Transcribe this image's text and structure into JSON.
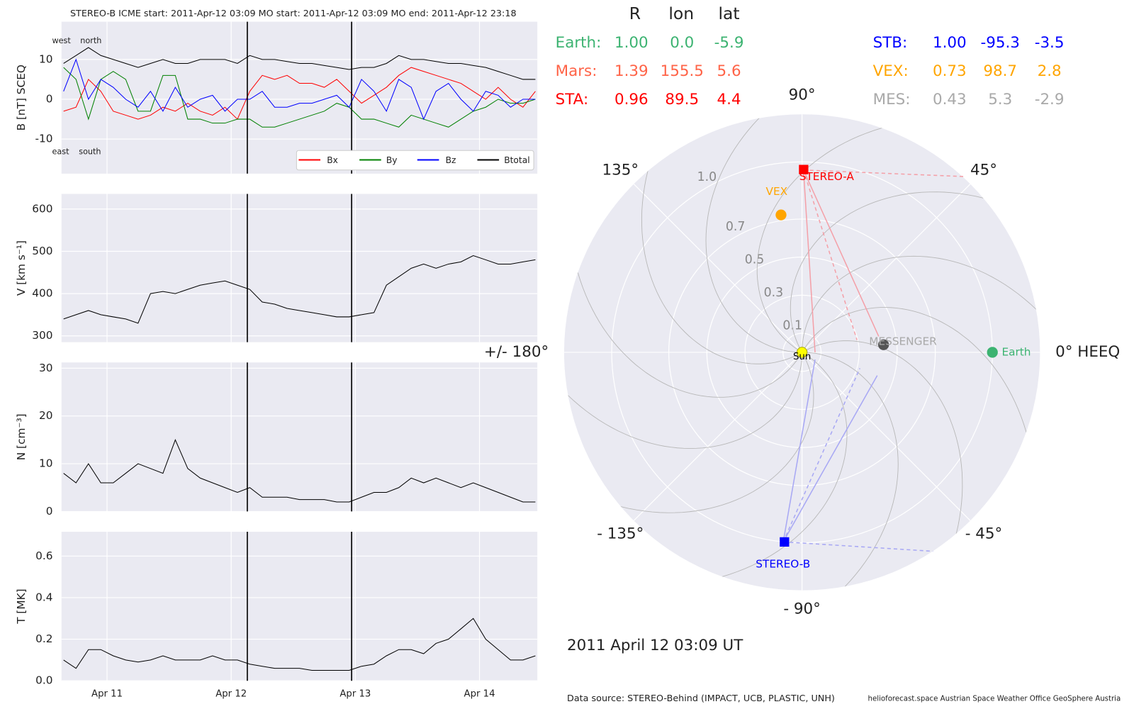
{
  "header": {
    "title": "STEREO-B    ICME start: 2011-Apr-12 03:09   MO start: 2011-Apr-12 03:09   MO end: 2011-Apr-12 23:18"
  },
  "events": [
    12.13,
    12.97
  ],
  "chart_data": [
    {
      "type": "line",
      "ylabel": "B [nT] SCEQ",
      "legend": "lower right",
      "annotations": [
        "west",
        "north",
        "east",
        "south"
      ],
      "x": [
        10.65,
        10.75,
        10.85,
        10.95,
        11.05,
        11.15,
        11.25,
        11.35,
        11.45,
        11.55,
        11.65,
        11.75,
        11.85,
        11.95,
        12.05,
        12.15,
        12.25,
        12.35,
        12.45,
        12.55,
        12.65,
        12.75,
        12.85,
        12.95,
        13.05,
        13.15,
        13.25,
        13.35,
        13.45,
        13.55,
        13.65,
        13.75,
        13.85,
        13.95,
        14.05,
        14.15,
        14.25,
        14.35,
        14.45
      ],
      "xlim": [
        10.633,
        14.466
      ],
      "xticks": [
        11,
        12,
        13,
        14
      ],
      "ylim": [
        -18.7,
        19.5
      ],
      "yticks": [
        -10,
        0,
        10
      ],
      "grid": true,
      "series": [
        {
          "name": "Bx",
          "color": "#ff0000",
          "values": [
            -3,
            -2,
            5,
            2,
            -3,
            -4,
            -5,
            -4,
            -2,
            -3,
            -1,
            -3,
            -4,
            -2,
            -5,
            2,
            6,
            5,
            6,
            4,
            4,
            3,
            5,
            2,
            -1,
            1,
            3,
            6,
            8,
            7,
            6,
            5,
            4,
            2,
            0,
            3,
            0,
            -2,
            2
          ]
        },
        {
          "name": "By",
          "color": "#008000",
          "values": [
            8,
            5,
            -5,
            5,
            7,
            5,
            -3,
            -3,
            6,
            6,
            -5,
            -5,
            -6,
            -6,
            -5,
            -5,
            -7,
            -7,
            -6,
            -5,
            -4,
            -3,
            -1,
            -2,
            -5,
            -5,
            -6,
            -7,
            -4,
            -5,
            -6,
            -7,
            -5,
            -3,
            -2,
            0,
            -1,
            -1,
            0
          ]
        },
        {
          "name": "Bz",
          "color": "#0000ff",
          "values": [
            2,
            10,
            0,
            5,
            3,
            0,
            -2,
            2,
            -3,
            3,
            -2,
            0,
            1,
            -3,
            0,
            0,
            2,
            -2,
            -2,
            -1,
            -1,
            0,
            1,
            -2,
            5,
            2,
            -3,
            5,
            3,
            -5,
            2,
            4,
            0,
            -3,
            2,
            1,
            -2,
            0,
            0
          ]
        },
        {
          "name": "Btotal",
          "color": "#000000",
          "values": [
            9,
            11,
            13,
            11,
            10,
            9,
            8,
            9,
            10,
            9,
            9,
            10,
            10,
            10,
            9,
            11,
            10,
            10,
            9.5,
            9,
            9,
            8.5,
            8,
            7.5,
            8,
            8,
            9,
            11,
            10,
            10,
            9.5,
            9,
            9,
            8.5,
            8,
            7,
            6,
            5,
            5
          ]
        }
      ]
    },
    {
      "type": "line",
      "ylabel": "V [km s⁻¹]",
      "x": [
        10.65,
        10.75,
        10.85,
        10.95,
        11.05,
        11.15,
        11.25,
        11.35,
        11.45,
        11.55,
        11.65,
        11.75,
        11.85,
        11.95,
        12.05,
        12.15,
        12.25,
        12.35,
        12.45,
        12.55,
        12.65,
        12.75,
        12.85,
        12.95,
        13.05,
        13.15,
        13.25,
        13.35,
        13.45,
        13.55,
        13.65,
        13.75,
        13.85,
        13.95,
        14.05,
        14.15,
        14.25,
        14.35,
        14.45
      ],
      "xlim": [
        10.633,
        14.466
      ],
      "xticks": [
        11,
        12,
        13,
        14
      ],
      "ylim": [
        285,
        636
      ],
      "yticks": [
        300,
        400,
        500,
        600
      ],
      "grid": true,
      "series": [
        {
          "color": "#000000",
          "values": [
            340,
            350,
            360,
            350,
            345,
            340,
            330,
            400,
            405,
            400,
            410,
            420,
            425,
            430,
            420,
            410,
            380,
            375,
            365,
            360,
            355,
            350,
            345,
            345,
            350,
            355,
            420,
            440,
            460,
            470,
            460,
            470,
            475,
            490,
            480,
            470,
            470,
            475,
            480
          ]
        }
      ]
    },
    {
      "type": "line",
      "ylabel": "N [cm⁻³]",
      "x": [
        10.65,
        10.75,
        10.85,
        10.95,
        11.05,
        11.15,
        11.25,
        11.35,
        11.45,
        11.55,
        11.65,
        11.75,
        11.85,
        11.95,
        12.05,
        12.15,
        12.25,
        12.35,
        12.45,
        12.55,
        12.65,
        12.75,
        12.85,
        12.95,
        13.05,
        13.15,
        13.25,
        13.35,
        13.45,
        13.55,
        13.65,
        13.75,
        13.85,
        13.95,
        14.05,
        14.15,
        14.25,
        14.35,
        14.45
      ],
      "xlim": [
        10.633,
        14.466
      ],
      "xticks": [
        11,
        12,
        13,
        14
      ],
      "ylim": [
        0,
        31.2
      ],
      "yticks": [
        0,
        10,
        20,
        30
      ],
      "grid": true,
      "series": [
        {
          "color": "#000000",
          "values": [
            8,
            6,
            10,
            6,
            6,
            8,
            10,
            9,
            8,
            15,
            9,
            7,
            6,
            5,
            4,
            5,
            3,
            3,
            3,
            2.5,
            2.5,
            2.5,
            2,
            2,
            3,
            4,
            4,
            5,
            7,
            6,
            7,
            6,
            5,
            6,
            5,
            4,
            3,
            2,
            2
          ]
        }
      ]
    },
    {
      "type": "line",
      "ylabel": "T [MK]",
      "x": [
        10.65,
        10.75,
        10.85,
        10.95,
        11.05,
        11.15,
        11.25,
        11.35,
        11.45,
        11.55,
        11.65,
        11.75,
        11.85,
        11.95,
        12.05,
        12.15,
        12.25,
        12.35,
        12.45,
        12.55,
        12.65,
        12.75,
        12.85,
        12.95,
        13.05,
        13.15,
        13.25,
        13.35,
        13.45,
        13.55,
        13.65,
        13.75,
        13.85,
        13.95,
        14.05,
        14.15,
        14.25,
        14.35,
        14.45
      ],
      "xlim": [
        10.633,
        14.466
      ],
      "xticks": [
        {
          "value": 11,
          "label": "Apr 11"
        },
        {
          "value": 12,
          "label": "Apr 12"
        },
        {
          "value": 13,
          "label": "Apr 13"
        },
        {
          "value": 14,
          "label": "Apr 14"
        }
      ],
      "ylim": [
        0,
        0.717
      ],
      "yticks": [
        {
          "value": 0,
          "label": "0.0"
        },
        {
          "value": 0.2,
          "label": "0.2"
        },
        {
          "value": 0.4,
          "label": "0.4"
        },
        {
          "value": 0.6,
          "label": "0.6"
        }
      ],
      "grid": true,
      "series": [
        {
          "color": "#000000",
          "values": [
            0.1,
            0.06,
            0.15,
            0.15,
            0.12,
            0.1,
            0.09,
            0.1,
            0.12,
            0.1,
            0.1,
            0.1,
            0.12,
            0.1,
            0.1,
            0.08,
            0.07,
            0.06,
            0.06,
            0.06,
            0.05,
            0.05,
            0.05,
            0.05,
            0.07,
            0.08,
            0.12,
            0.15,
            0.15,
            0.13,
            0.18,
            0.2,
            0.25,
            0.3,
            0.2,
            0.15,
            0.1,
            0.1,
            0.12
          ]
        }
      ]
    },
    {
      "type": "polar",
      "rlim": [
        0,
        1.25
      ],
      "rticks": [
        0.1,
        0.3,
        0.5,
        0.7,
        {
          "value": 1,
          "label": "1.0"
        }
      ],
      "thetaticks": [
        {
          "value": 0,
          "label": "0° HEEQ"
        },
        {
          "value": 45,
          "label": "45°"
        },
        {
          "value": 90,
          "label": "90°"
        },
        {
          "value": 135,
          "label": "135°"
        },
        {
          "value": 180,
          "label": "+/- 180°"
        },
        {
          "value": -135,
          "label": "- 135°"
        },
        {
          "value": -90,
          "label": "- 90°"
        },
        {
          "value": -45,
          "label": "- 45°"
        }
      ],
      "points": [
        {
          "name": "Sun",
          "color": "#ffff00",
          "r": 0,
          "lon": 0
        },
        {
          "name": "Earth",
          "color": "#3cb371",
          "r": 1.0,
          "lon": 0.0
        },
        {
          "name": "STEREO-A",
          "color": "#ff0000",
          "r": 0.96,
          "lon": 89.5
        },
        {
          "name": "STEREO-B",
          "color": "#0000ff",
          "r": 1.0,
          "lon": -95.3
        },
        {
          "name": "VEX",
          "color": "#ffa500",
          "r": 0.73,
          "lon": 98.7
        },
        {
          "name": "MESSENGER",
          "color": "#a9a9a9",
          "r": 0.43,
          "lon": 5.3
        }
      ]
    }
  ],
  "positions": {
    "columns": [
      "R",
      "lon",
      "lat"
    ],
    "rows": [
      [
        "Earth:",
        "1.00",
        "0.0",
        "-5.9"
      ],
      [
        "Mars:",
        "1.39",
        "155.5",
        "5.6"
      ],
      [
        "STA:",
        "0.96",
        "89.5",
        "4.4"
      ],
      [
        "STB:",
        "1.00",
        "-95.3",
        "-3.5"
      ],
      [
        "VEX:",
        "0.73",
        "98.7",
        "2.8"
      ],
      [
        "MES:",
        "0.43",
        "5.3",
        "-2.9"
      ]
    ],
    "colors": [
      "#3cb371",
      "#ff6347",
      "#ff0000",
      "#0000ff",
      "#ffa500",
      "#a9a9a9"
    ]
  },
  "date_label": "2011 April 12  03:09 UT",
  "footer": {
    "source": "Data source: STEREO-Behind (IMPACT, UCB, PLASTIC, UNH)",
    "credits": "helioforecast.space   Austrian Space Weather Office   GeoSphere Austria"
  }
}
